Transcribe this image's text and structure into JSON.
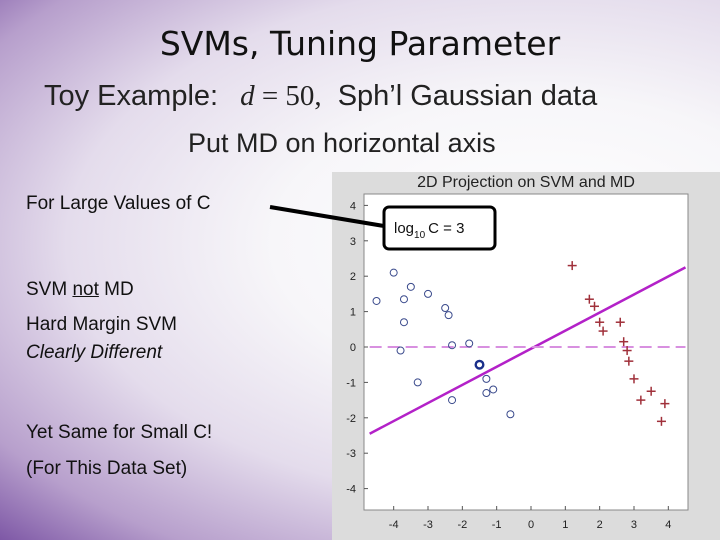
{
  "slide": {
    "title": "SVMs, Tuning Parameter",
    "subtitle_prefix": "Toy Example:",
    "subtitle_math_var": "d",
    "subtitle_math_rest": " = 50,",
    "subtitle_suffix": "Sph’l Gaussian data",
    "subtitle2": "Put MD on horizontal axis",
    "left_text": {
      "large_c": "For Large Values of C",
      "svm_pre": "SVM ",
      "svm_not": "not",
      "svm_post": " MD",
      "hard_margin": "Hard Margin SVM",
      "clearly_different": "Clearly Different",
      "small_c": "Yet Same for Small C!",
      "data_set": "(For This Data Set)"
    }
  },
  "colors": {
    "circle_marker": "#3a4a8c",
    "plus_marker": "#a0303a",
    "svm_line": "#b321c8",
    "md_line": "#d890e0",
    "callout": "#000000",
    "plot_bg": "#ffffff",
    "frame_bg": "#dcdcdc"
  },
  "chart_data": {
    "type": "scatter",
    "title": "2D Projection on SVM and MD",
    "xlim": [
      -4.5,
      4.5
    ],
    "ylim": [
      -5,
      4.5
    ],
    "xticks": [
      -4,
      -3,
      -2,
      -1,
      0,
      1,
      2,
      3,
      4
    ],
    "yticks": [
      -4,
      -3,
      -2,
      -1,
      0,
      1,
      2,
      3,
      4
    ],
    "grid": false,
    "annotation_text": {
      "base": "log",
      "sub": "10",
      "rest": "C = 3"
    },
    "series": [
      {
        "marker": "circle",
        "points": [
          [
            -4.5,
            1.3
          ],
          [
            -4.0,
            2.1
          ],
          [
            -3.7,
            1.35
          ],
          [
            -3.5,
            1.7
          ],
          [
            -3.0,
            1.5
          ],
          [
            -2.5,
            1.1
          ],
          [
            -2.4,
            0.9
          ],
          [
            -3.7,
            0.7
          ],
          [
            -3.8,
            -0.1
          ],
          [
            -2.3,
            0.05
          ],
          [
            -1.8,
            0.1
          ],
          [
            -3.3,
            -1.0
          ],
          [
            -2.3,
            -1.5
          ],
          [
            -1.5,
            -0.5
          ],
          [
            -1.3,
            -0.9
          ],
          [
            -1.3,
            -1.3
          ],
          [
            -1.1,
            -1.2
          ],
          [
            -0.6,
            -1.9
          ]
        ]
      },
      {
        "marker": "plus",
        "points": [
          [
            1.2,
            2.3
          ],
          [
            1.7,
            1.35
          ],
          [
            1.85,
            1.15
          ],
          [
            2.0,
            0.7
          ],
          [
            2.1,
            0.45
          ],
          [
            2.6,
            0.7
          ],
          [
            2.7,
            0.15
          ],
          [
            2.8,
            -0.1
          ],
          [
            2.85,
            -0.4
          ],
          [
            3.0,
            -0.9
          ],
          [
            3.2,
            -1.5
          ],
          [
            3.5,
            -1.25
          ],
          [
            3.9,
            -1.6
          ],
          [
            3.8,
            -2.1
          ]
        ]
      },
      {
        "marker": "circle-bold",
        "points": [
          [
            -1.5,
            -0.5
          ]
        ]
      }
    ],
    "lines": [
      {
        "name": "svm",
        "style": "solid",
        "points": [
          [
            -4.7,
            -2.45
          ],
          [
            4.5,
            2.25
          ]
        ]
      },
      {
        "name": "md",
        "style": "dashed",
        "points": [
          [
            -4.7,
            0.0
          ],
          [
            4.5,
            0.0
          ]
        ]
      }
    ]
  }
}
